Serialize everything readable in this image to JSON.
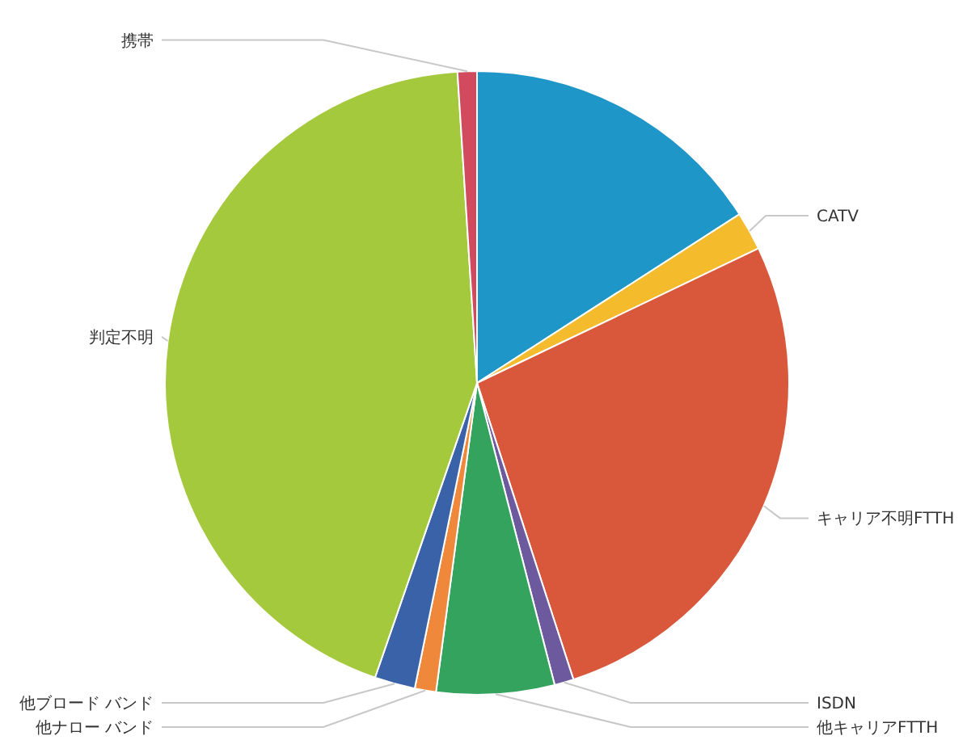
{
  "chart_data": {
    "type": "pie",
    "categories": [
      null,
      "CATV",
      "キャリア不明FTTH",
      "ISDN",
      "他キャリアFTTH",
      "他ナロー バンド",
      "他ブロード バンド",
      "判定不明",
      "携帯"
    ],
    "values": [
      15.9,
      2.0,
      27.1,
      1.0,
      6.1,
      1.1,
      2.1,
      43.7,
      1.0
    ],
    "colors": [
      "#1f96c8",
      "#f4bb2c",
      "#d9573b",
      "#6d5a9e",
      "#34a35e",
      "#f0883c",
      "#3a62a8",
      "#a5c93d",
      "#d14a5e"
    ]
  }
}
